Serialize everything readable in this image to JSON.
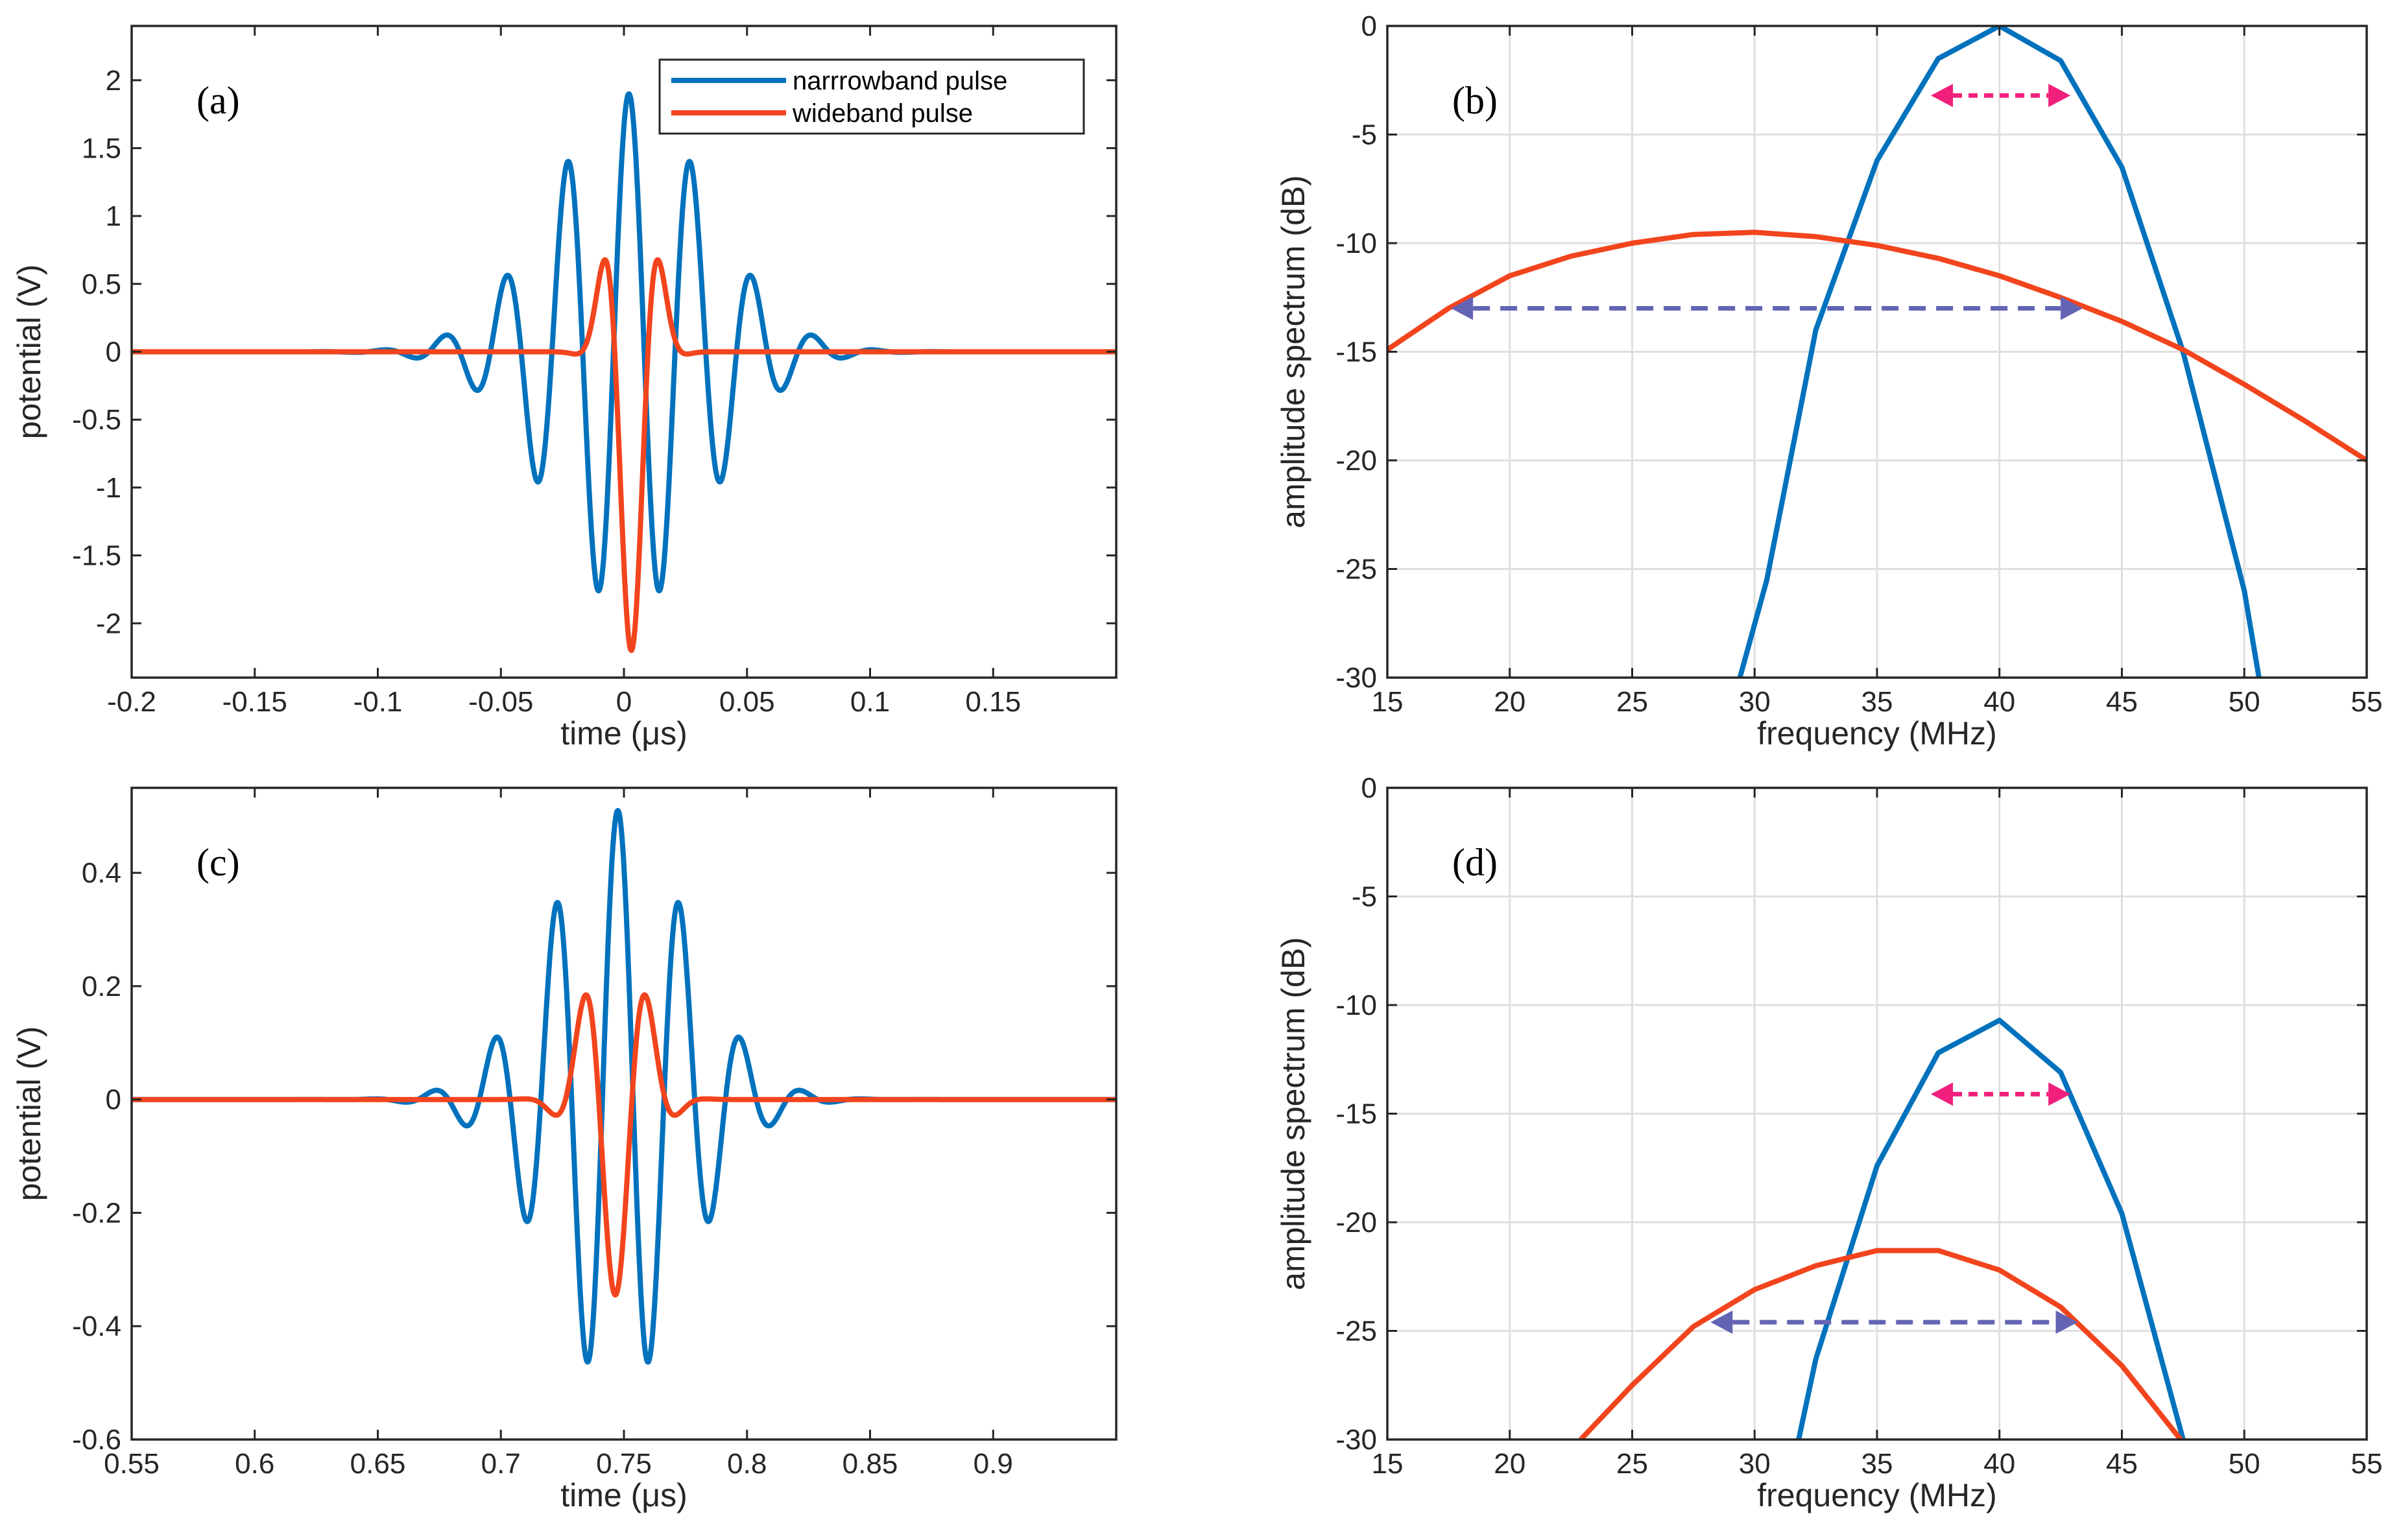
{
  "chart_data": [
    {
      "id": "a",
      "type": "line",
      "panel_label": "(a)",
      "xlabel": "time (μs)",
      "ylabel": "potential (V)",
      "xlim": [
        -0.2,
        0.2
      ],
      "ylim": [
        -2.4,
        2.4
      ],
      "grid": false,
      "xticks": [
        -0.2,
        -0.15,
        -0.1,
        -0.05,
        0,
        0.05,
        0.1,
        0.15
      ],
      "xtick_labels": [
        "-0.2",
        "-0.15",
        "-0.1",
        "-0.05",
        "0",
        "0.05",
        "0.1",
        "0.15"
      ],
      "yticks": [
        2,
        1.5,
        1,
        0.5,
        0,
        -0.5,
        -1,
        -1.5,
        -2
      ],
      "ytick_labels": [
        "2",
        "1.5",
        "1",
        "0.5",
        "0",
        "-0.5",
        "-1",
        "-1.5",
        "-2"
      ],
      "legend": {
        "placement": "top-right",
        "entries": [
          "narrrowband pulse",
          "wideband pulse"
        ]
      },
      "series": [
        {
          "name": "narrrowband pulse",
          "color": "#0072BD",
          "model": "cosine-burst",
          "amplitude": 1.9,
          "frequency": 40,
          "center": 0.002,
          "width": 0.045
        },
        {
          "name": "wideband pulse",
          "color": "#F2441D",
          "model": "gaussian-wavelet",
          "amplitude": 2.2,
          "frequency": 37,
          "center": 0.003,
          "width": 0.011
        }
      ]
    },
    {
      "id": "b",
      "type": "line",
      "panel_label": "(b)",
      "xlabel": "frequency (MHz)",
      "ylabel": "amplitude spectrum (dB)",
      "xlim": [
        15,
        55
      ],
      "ylim": [
        -30,
        0
      ],
      "grid": true,
      "xticks": [
        15,
        20,
        25,
        30,
        35,
        40,
        45,
        50,
        55
      ],
      "xtick_labels": [
        "15",
        "20",
        "25",
        "30",
        "35",
        "40",
        "45",
        "50",
        "55"
      ],
      "yticks": [
        0,
        -5,
        -10,
        -15,
        -20,
        -25,
        -30
      ],
      "ytick_labels": [
        "0",
        "-5",
        "-10",
        "-15",
        "-20",
        "-25",
        "-30"
      ],
      "series": [
        {
          "name": "narrrowband pulse",
          "color": "#0072BD",
          "x": [
            29.4,
            30.5,
            32.5,
            35,
            37.5,
            40,
            42.5,
            45,
            47.5,
            50,
            50.6
          ],
          "y": [
            -30,
            -25.5,
            -14,
            -6.2,
            -1.5,
            0,
            -1.6,
            -6.5,
            -15,
            -26,
            -30
          ]
        },
        {
          "name": "wideband pulse",
          "color": "#F2441D",
          "x": [
            15,
            17.5,
            20,
            22.5,
            25,
            27.5,
            30,
            32.5,
            35,
            37.5,
            40,
            42.5,
            45,
            47.5,
            50,
            52.5,
            55
          ],
          "y": [
            -14.9,
            -13,
            -11.5,
            -10.6,
            -10,
            -9.6,
            -9.5,
            -9.7,
            -10.1,
            -10.7,
            -11.5,
            -12.5,
            -13.6,
            -14.9,
            -16.5,
            -18.2,
            -20
          ]
        }
      ],
      "annotations": [
        {
          "type": "double-arrow",
          "style": "dotted",
          "color": "#F0207C",
          "x1": 37.2,
          "x2": 42.9,
          "y": -3.2
        },
        {
          "type": "double-arrow",
          "style": "dashed",
          "color": "#6464B4",
          "x1": 17.6,
          "x2": 43.4,
          "y": -13
        }
      ]
    },
    {
      "id": "c",
      "type": "line",
      "panel_label": "(c)",
      "xlabel": "time (μs)",
      "ylabel": "potential (V)",
      "xlim": [
        0.55,
        0.95
      ],
      "ylim": [
        -0.6,
        0.55
      ],
      "grid": false,
      "xticks": [
        0.55,
        0.6,
        0.65,
        0.7,
        0.75,
        0.8,
        0.85,
        0.9
      ],
      "xtick_labels": [
        "0.55",
        "0.6",
        "0.65",
        "0.7",
        "0.75",
        "0.8",
        "0.85",
        "0.9"
      ],
      "yticks": [
        0.4,
        0.2,
        0,
        -0.2,
        -0.4,
        -0.6
      ],
      "ytick_labels": [
        "0.4",
        "0.2",
        "0",
        "-0.2",
        "-0.4",
        "-0.6"
      ],
      "series": [
        {
          "name": "narrrowband pulse",
          "color": "#0072BD",
          "model": "cosine-burst",
          "amplitude": 0.51,
          "frequency": 40,
          "center": 0.7475,
          "width": 0.04
        },
        {
          "name": "wideband pulse",
          "color": "#F2441D",
          "model": "gaussian-wavelet",
          "amplitude": 0.345,
          "frequency": 37,
          "center": 0.7465,
          "width": 0.016
        }
      ]
    },
    {
      "id": "d",
      "type": "line",
      "panel_label": "(d)",
      "xlabel": "frequency (MHz)",
      "ylabel": "amplitude spectrum (dB)",
      "xlim": [
        15,
        55
      ],
      "ylim": [
        -30,
        0
      ],
      "grid": true,
      "xticks": [
        15,
        20,
        25,
        30,
        35,
        40,
        45,
        50,
        55
      ],
      "xtick_labels": [
        "15",
        "20",
        "25",
        "30",
        "35",
        "40",
        "45",
        "50",
        "55"
      ],
      "yticks": [
        0,
        -5,
        -10,
        -15,
        -20,
        -25,
        -30
      ],
      "ytick_labels": [
        "0",
        "-5",
        "-10",
        "-15",
        "-20",
        "-25",
        "-30"
      ],
      "series": [
        {
          "name": "narrrowband pulse",
          "color": "#0072BD",
          "x": [
            31.8,
            32.5,
            35,
            37.5,
            40,
            42.5,
            45,
            47.5
          ],
          "y": [
            -30,
            -26.3,
            -17.4,
            -12.2,
            -10.7,
            -13.1,
            -19.6,
            -30
          ]
        },
        {
          "name": "wideband pulse",
          "color": "#F2441D",
          "x": [
            22.9,
            25,
            27.5,
            30,
            32.5,
            35,
            37.5,
            40,
            42.5,
            45,
            47.4
          ],
          "y": [
            -30,
            -27.5,
            -24.8,
            -23.1,
            -22,
            -21.3,
            -21.3,
            -22.2,
            -23.9,
            -26.6,
            -30
          ]
        }
      ],
      "annotations": [
        {
          "type": "double-arrow",
          "style": "dotted",
          "color": "#F0207C",
          "x1": 37.2,
          "x2": 42.9,
          "y": -14.1
        },
        {
          "type": "double-arrow",
          "style": "dashed",
          "color": "#6464B4",
          "x1": 28.2,
          "x2": 43.2,
          "y": -24.6
        }
      ]
    }
  ]
}
